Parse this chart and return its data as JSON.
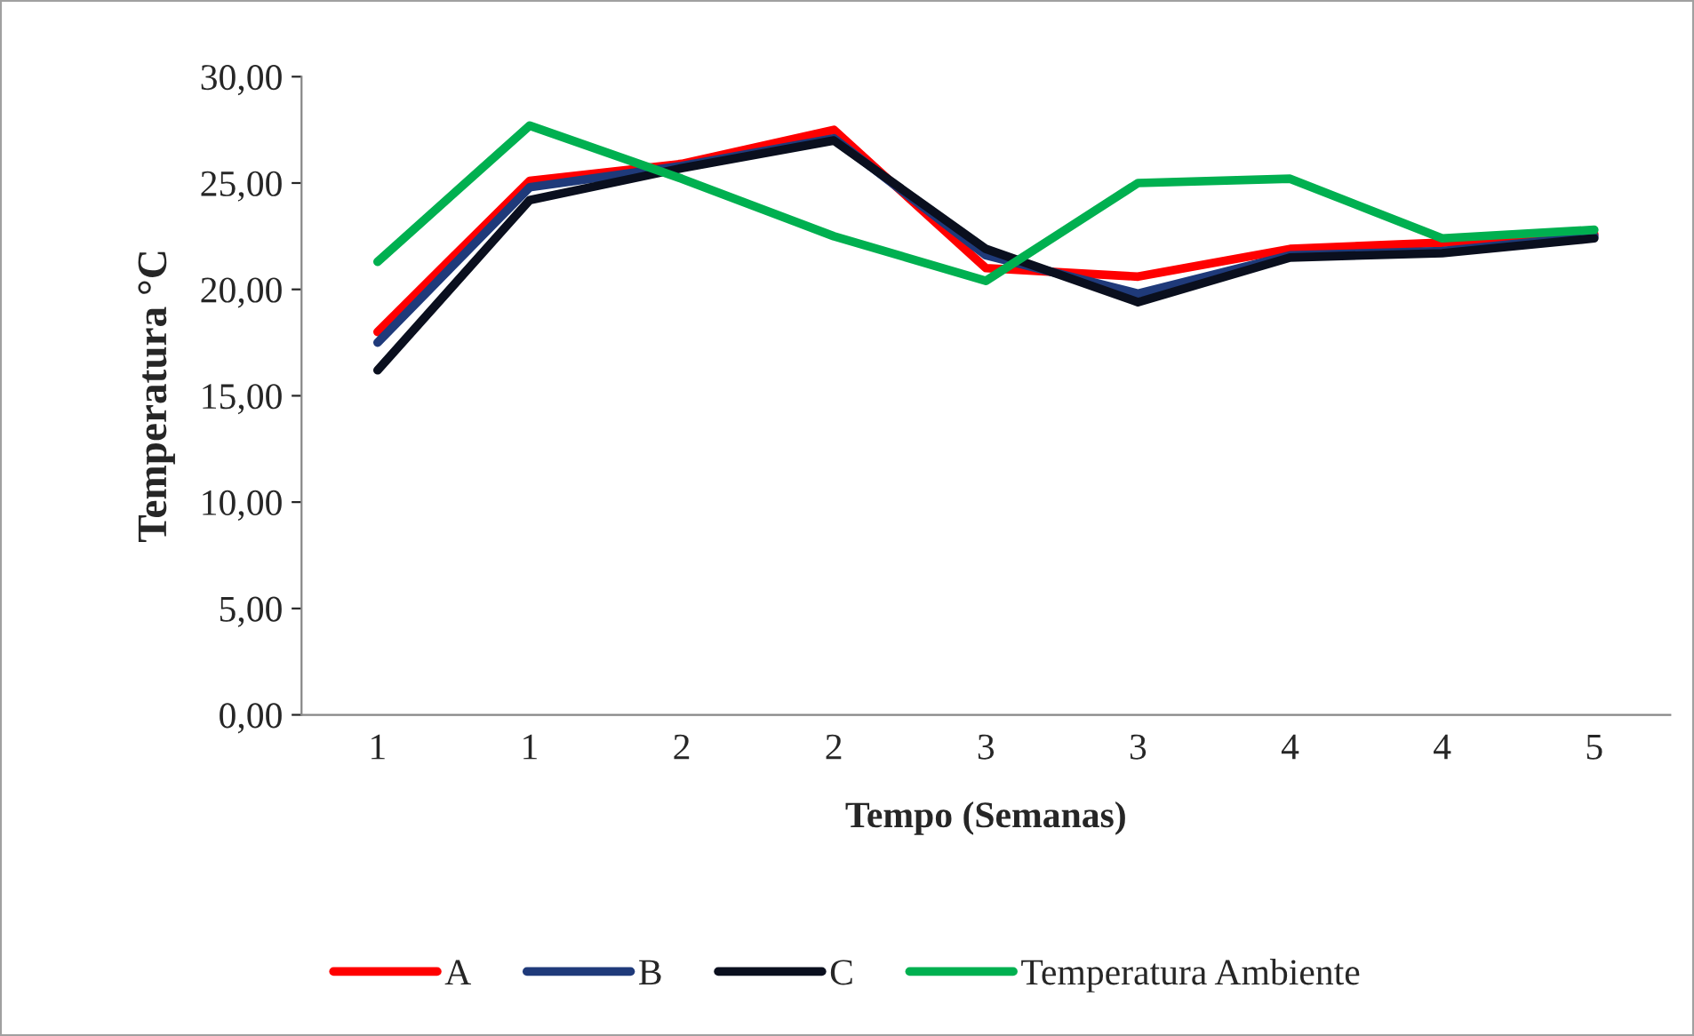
{
  "chart_data": {
    "type": "line",
    "xlabel": "Tempo (Semanas)",
    "ylabel": "Temperatura °C",
    "categories": [
      "1",
      "1",
      "2",
      "2",
      "3",
      "3",
      "4",
      "4",
      "5"
    ],
    "series": [
      {
        "name": "A",
        "color": "#ff0000",
        "values": [
          18.0,
          25.1,
          25.9,
          27.5,
          21.0,
          20.6,
          21.9,
          22.2,
          22.6
        ]
      },
      {
        "name": "B",
        "color": "#1f3a7a",
        "values": [
          17.5,
          24.8,
          25.8,
          27.1,
          21.6,
          19.8,
          21.6,
          21.8,
          22.5
        ]
      },
      {
        "name": "C",
        "color": "#0a0f1e",
        "values": [
          16.2,
          24.2,
          25.7,
          27.0,
          21.9,
          19.4,
          21.5,
          21.7,
          22.4
        ]
      },
      {
        "name": "Temperatura Ambiente",
        "color": "#00b050",
        "values": [
          21.3,
          27.7,
          25.2,
          22.5,
          20.4,
          25.0,
          25.2,
          22.4,
          22.8
        ]
      }
    ],
    "ylim": [
      0,
      30
    ],
    "yticks": [
      {
        "value": 0,
        "label": "0,00"
      },
      {
        "value": 5,
        "label": "5,00"
      },
      {
        "value": 10,
        "label": "10,00"
      },
      {
        "value": 15,
        "label": "15,00"
      },
      {
        "value": 20,
        "label": "20,00"
      },
      {
        "value": 25,
        "label": "25,00"
      },
      {
        "value": 30,
        "label": "30,00"
      }
    ],
    "grid": false,
    "legend": "bottom",
    "line_style": "solid",
    "marker": "none"
  }
}
